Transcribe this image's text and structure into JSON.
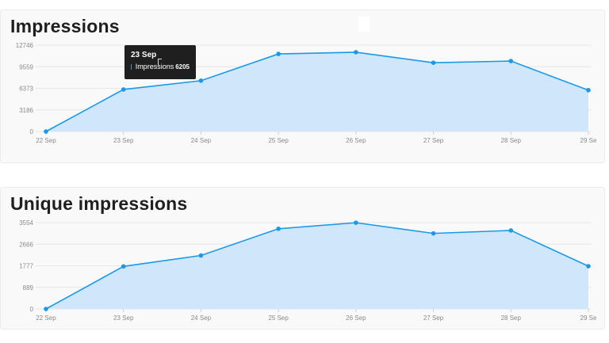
{
  "colors": {
    "line": "#1a9ae6",
    "fill": "#cfe6fb",
    "grid": "#e6e6e6",
    "tooltip_bg": "#1f1f1f",
    "tooltip_swatch": "#3b8ee6"
  },
  "charts": [
    {
      "title": "Impressions",
      "tooltip": {
        "title": "23 Sep",
        "series": "Impressions",
        "value": "6205"
      }
    },
    {
      "title": "Unique impressions"
    }
  ],
  "chart_data": [
    {
      "type": "area",
      "title": "Impressions",
      "categories": [
        "22 Sep",
        "23 Sep",
        "24 Sep",
        "25 Sep",
        "26 Sep",
        "27 Sep",
        "28 Sep",
        "29 Se"
      ],
      "series": [
        {
          "name": "Impressions",
          "values": [
            0,
            6205,
            7500,
            11450,
            11700,
            10150,
            10400,
            6100
          ]
        }
      ],
      "y_ticks": [
        "0",
        "3186",
        "6373",
        "9559",
        "12746"
      ],
      "ylim": [
        0,
        12746
      ],
      "grid": true
    },
    {
      "type": "area",
      "title": "Unique impressions",
      "categories": [
        "22 Sep",
        "23 Sep",
        "24 Sep",
        "25 Sep",
        "26 Sep",
        "27 Sep",
        "28 Sep",
        "29 Se"
      ],
      "series": [
        {
          "values": [
            0,
            1750,
            2200,
            3300,
            3550,
            3110,
            3230,
            1760
          ]
        }
      ],
      "y_ticks": [
        "0",
        "889",
        "1777",
        "2666",
        "3554"
      ],
      "ylim": [
        0,
        3554
      ],
      "grid": true
    }
  ]
}
